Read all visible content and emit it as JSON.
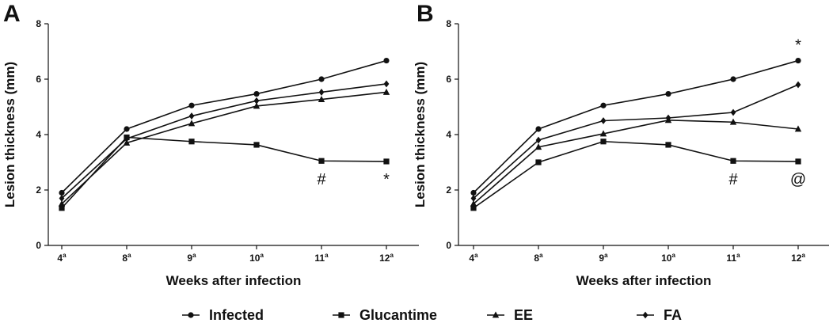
{
  "legend": [
    {
      "name": "Infected",
      "marker": "circle"
    },
    {
      "name": "Glucantime",
      "marker": "square"
    },
    {
      "name": "EE",
      "marker": "triangle"
    },
    {
      "name": "FA",
      "marker": "diamond"
    }
  ],
  "colors": {
    "line": "#111111",
    "background": "#ffffff"
  },
  "chart_data": [
    {
      "type": "line",
      "panel": "A",
      "categories": [
        "4",
        "8",
        "9",
        "10",
        "11",
        "12"
      ],
      "category_superscript": "a",
      "xlabel": "Weeks after infection",
      "ylabel": "Lesion thickness (mm)",
      "ylim": [
        0,
        8
      ],
      "yticks": [
        "0",
        "2",
        "4",
        "6",
        "8"
      ],
      "series": [
        {
          "name": "Infected",
          "marker": "circle",
          "values": [
            1.9,
            4.2,
            5.05,
            5.47,
            6.0,
            6.67
          ]
        },
        {
          "name": "Glucantime",
          "marker": "square",
          "values": [
            1.35,
            3.9,
            3.75,
            3.63,
            3.05,
            3.03
          ]
        },
        {
          "name": "EE",
          "marker": "triangle",
          "values": [
            1.5,
            3.7,
            4.4,
            5.03,
            5.27,
            5.53
          ]
        },
        {
          "name": "FA",
          "marker": "diamond",
          "values": [
            1.7,
            3.85,
            4.67,
            5.22,
            5.53,
            5.83
          ]
        }
      ],
      "annotations": [
        {
          "text": "#",
          "category": "11",
          "y": 2.4
        },
        {
          "text": "*",
          "category": "12",
          "y": 2.4
        }
      ]
    },
    {
      "type": "line",
      "panel": "B",
      "categories": [
        "4",
        "8",
        "9",
        "10",
        "11",
        "12"
      ],
      "category_superscript": "a",
      "xlabel": "Weeks after infection",
      "ylabel": "Lesion thickness (mm)",
      "ylim": [
        0,
        8
      ],
      "yticks": [
        "0",
        "2",
        "4",
        "6",
        "8"
      ],
      "series": [
        {
          "name": "Infected",
          "marker": "circle",
          "values": [
            1.9,
            4.2,
            5.05,
            5.47,
            6.0,
            6.67
          ]
        },
        {
          "name": "Glucantime",
          "marker": "square",
          "values": [
            1.35,
            3.0,
            3.75,
            3.63,
            3.05,
            3.03
          ]
        },
        {
          "name": "EE",
          "marker": "triangle",
          "values": [
            1.5,
            3.55,
            4.03,
            4.52,
            4.45,
            4.2
          ]
        },
        {
          "name": "FA",
          "marker": "diamond",
          "values": [
            1.7,
            3.8,
            4.5,
            4.6,
            4.8,
            5.8
          ]
        }
      ],
      "annotations": [
        {
          "text": "*",
          "category": "12",
          "y": 7.25
        },
        {
          "text": "#",
          "category": "11",
          "y": 2.4
        },
        {
          "text": "@",
          "category": "12",
          "y": 2.4
        }
      ]
    }
  ]
}
